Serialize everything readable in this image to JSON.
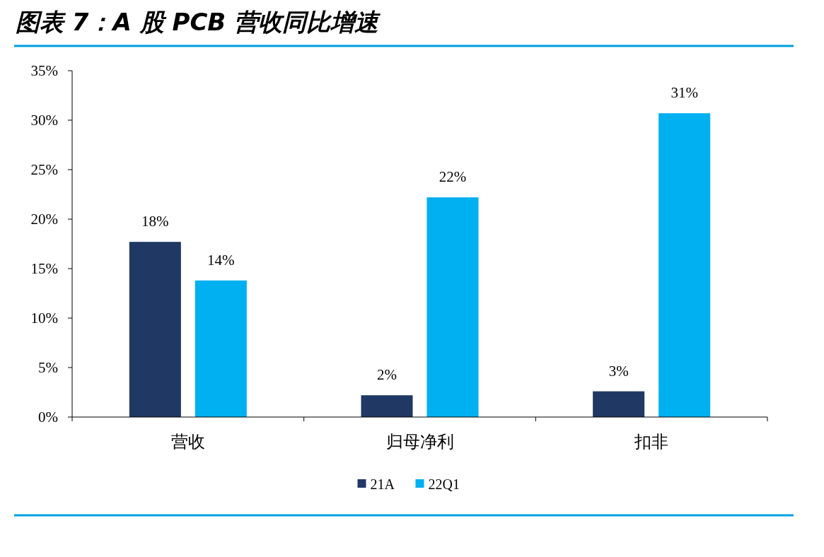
{
  "chart_data": {
    "type": "bar",
    "title": "图表 7：A 股 PCB 营收同比增速",
    "categories": [
      "营收",
      "归母净利",
      "扣非"
    ],
    "series": [
      {
        "name": "21A",
        "color": "#203864",
        "values": [
          17.7,
          2.2,
          2.6
        ],
        "value_labels": [
          "18%",
          "2%",
          "3%"
        ]
      },
      {
        "name": "22Q1",
        "color": "#00b0f0",
        "values": [
          13.8,
          22.2,
          30.7
        ],
        "value_labels": [
          "14%",
          "22%",
          "31%"
        ]
      }
    ],
    "ylim": [
      0,
      35
    ],
    "yticks": [
      {
        "value": 0,
        "label": "0%"
      },
      {
        "value": 5,
        "label": "5%"
      },
      {
        "value": 10,
        "label": "10%"
      },
      {
        "value": 15,
        "label": "15%"
      },
      {
        "value": 20,
        "label": "20%"
      },
      {
        "value": 25,
        "label": "25%"
      },
      {
        "value": 30,
        "label": "30%"
      },
      {
        "value": 35,
        "label": "35%"
      }
    ],
    "grid": false,
    "legend": "bottom"
  }
}
